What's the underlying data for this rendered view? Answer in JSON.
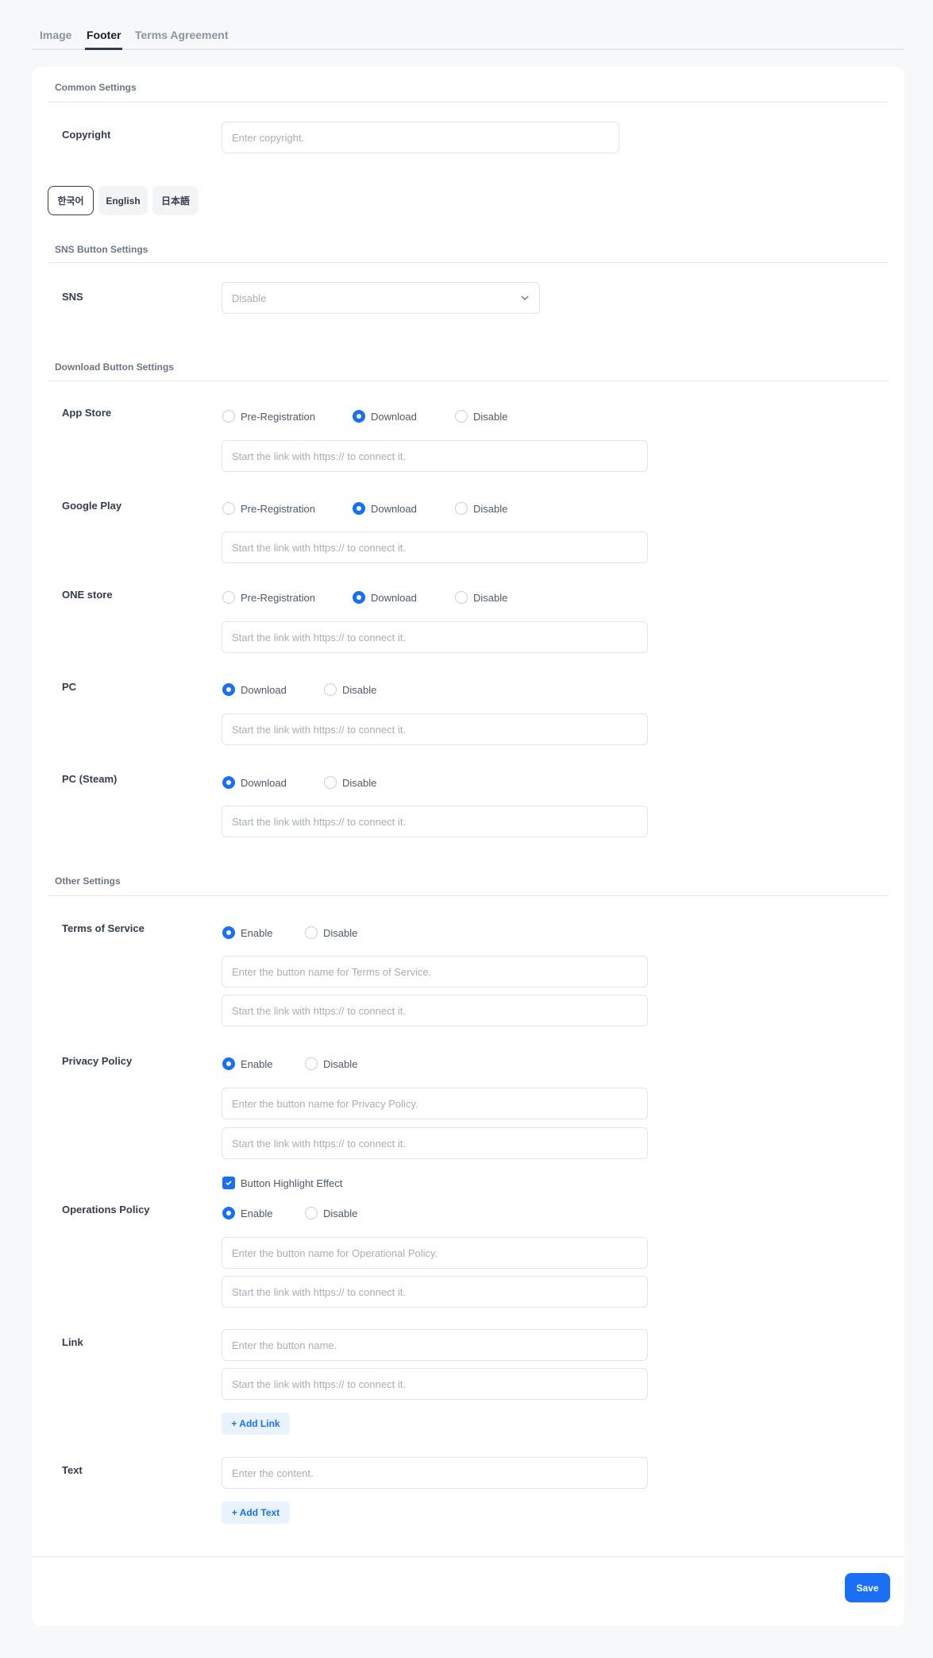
{
  "tabs": [
    "Image",
    "Footer",
    "Terms Agreement"
  ],
  "active_tab": "Footer",
  "sections": {
    "common": "Common Settings",
    "sns": "SNS Button Settings",
    "download": "Download Button Settings",
    "other": "Other Settings"
  },
  "copyright": {
    "label": "Copyright",
    "placeholder": "Enter copyright.",
    "value": ""
  },
  "languages": [
    "한국어",
    "English",
    "日本語"
  ],
  "active_language": "한국어",
  "sns": {
    "label": "SNS",
    "value": "Disable"
  },
  "link_placeholder": "Start the link with https:// to connect it.",
  "download": {
    "app_store": {
      "label": "App Store",
      "options": [
        "Pre-Registration",
        "Download",
        "Disable"
      ],
      "selected": "Download"
    },
    "google_play": {
      "label": "Google Play",
      "options": [
        "Pre-Registration",
        "Download",
        "Disable"
      ],
      "selected": "Download"
    },
    "one_store": {
      "label": "ONE store",
      "options": [
        "Pre-Registration",
        "Download",
        "Disable"
      ],
      "selected": "Download"
    },
    "pc": {
      "label": "PC",
      "options": [
        "Download",
        "Disable"
      ],
      "selected": "Download"
    },
    "pc_steam": {
      "label": "PC (Steam)",
      "options": [
        "Download",
        "Disable"
      ],
      "selected": "Download"
    }
  },
  "other": {
    "tos": {
      "label": "Terms of Service",
      "options": [
        "Enable",
        "Disable"
      ],
      "selected": "Enable",
      "name_placeholder": "Enter the button name for Terms of Service."
    },
    "privacy": {
      "label": "Privacy Policy",
      "options": [
        "Enable",
        "Disable"
      ],
      "selected": "Enable",
      "name_placeholder": "Enter the button name for Privacy Policy."
    },
    "highlight": {
      "label": "Button Highlight Effect",
      "checked": true
    },
    "operations": {
      "label": "Operations Policy",
      "options": [
        "Enable",
        "Disable"
      ],
      "selected": "Enable",
      "name_placeholder": "Enter the button name for Operational Policy."
    },
    "link": {
      "label": "Link",
      "name_placeholder": "Enter the button name.",
      "add_label": "+ Add Link"
    },
    "text": {
      "label": "Text",
      "placeholder": "Enter the content.",
      "add_label": "+ Add Text"
    }
  },
  "save_label": "Save",
  "colors": {
    "accent": "#1b6ff5",
    "accent_light": "#e8f3ff"
  }
}
